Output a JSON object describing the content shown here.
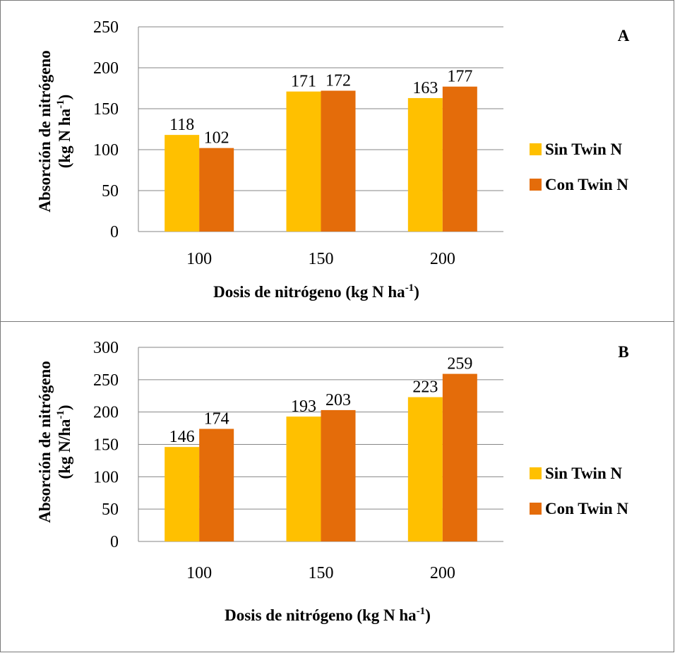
{
  "chart_data": [
    {
      "type": "bar",
      "panel_letter": "A",
      "categories": [
        "100",
        "150",
        "200"
      ],
      "series": [
        {
          "name": "Sin Twin N",
          "values": [
            118,
            171,
            163
          ],
          "color": "#FFC000"
        },
        {
          "name": "Con Twin N",
          "values": [
            102,
            172,
            177
          ],
          "color": "#E46C0A"
        }
      ],
      "ylim": [
        0,
        250
      ],
      "ytick_step": 50,
      "ylabel_line1": "Absorción de nitrógeno",
      "ylabel_line2": "(kg N ha",
      "ylabel_sup": "-1",
      "ylabel_close": ")",
      "xlabel": "Dosis de nitrógeno (kg N ha",
      "xlabel_sup": "-1",
      "xlabel_close": ")",
      "grid": true,
      "legend_position": "right"
    },
    {
      "type": "bar",
      "panel_letter": "B",
      "categories": [
        "100",
        "150",
        "200"
      ],
      "series": [
        {
          "name": "Sin Twin N",
          "values": [
            146,
            193,
            223
          ],
          "color": "#FFC000"
        },
        {
          "name": "Con Twin N",
          "values": [
            174,
            203,
            259
          ],
          "color": "#E46C0A"
        }
      ],
      "ylim": [
        0,
        300
      ],
      "ytick_step": 50,
      "ylabel_line1": "Absorción de nitrógeno",
      "ylabel_line2": "(kg N/ha",
      "ylabel_sup": "-1",
      "ylabel_close": ")",
      "xlabel": "Dosis de nitrógeno (kg N ha",
      "xlabel_sup": "-1",
      "xlabel_close": ")",
      "grid": true,
      "legend_position": "right"
    }
  ]
}
